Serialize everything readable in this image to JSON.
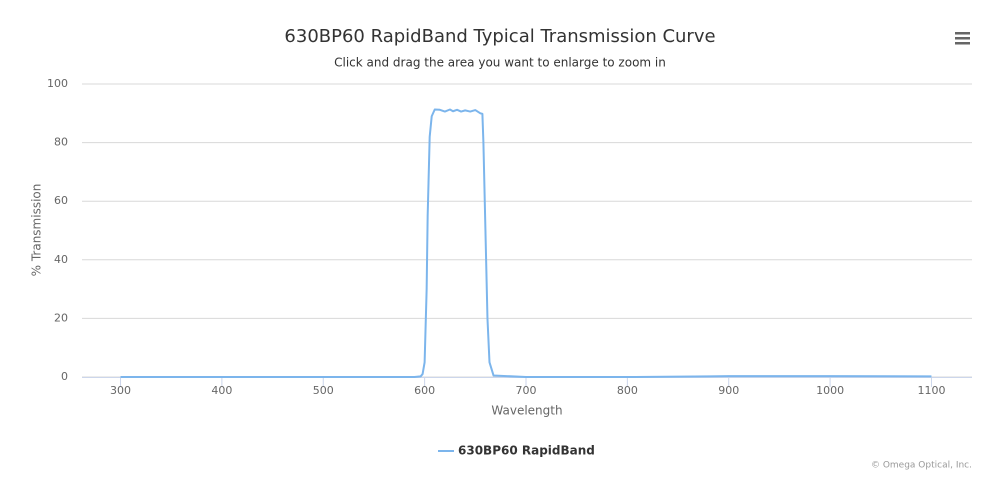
{
  "chart_data": {
    "type": "line",
    "title": "630BP60 RapidBand Typical Transmission Curve",
    "subtitle": "Click and drag the area you want to enlarge to zoom in",
    "x_label": "Wavelength",
    "y_label": "% Transmission",
    "credit": "© Omega Optical, Inc.",
    "x": [
      300,
      400,
      500,
      590,
      596,
      598,
      600,
      602,
      603,
      605,
      607,
      610,
      615,
      620,
      625,
      628,
      632,
      636,
      640,
      645,
      650,
      655,
      657,
      658,
      660,
      662,
      664,
      668,
      700,
      800,
      880,
      900,
      1000,
      1100
    ],
    "series": [
      {
        "name": "630BP60 RapidBand",
        "color": "#7cb5ec",
        "values": [
          0,
          0,
          0,
          0,
          0.2,
          1,
          5,
          30,
          55,
          82,
          89,
          91.3,
          91.2,
          90.6,
          91.3,
          90.7,
          91.2,
          90.6,
          91.0,
          90.6,
          91.1,
          90.0,
          89.8,
          80,
          50,
          20,
          5,
          0.5,
          0,
          0,
          0.2,
          0.3,
          0.3,
          0.2
        ]
      }
    ],
    "xlim": [
      262,
      1140
    ],
    "ylim": [
      0,
      100
    ],
    "xticks": [
      300,
      400,
      500,
      600,
      700,
      800,
      900,
      1000,
      1100
    ],
    "yticks": [
      0,
      20,
      40,
      60,
      80,
      100
    ],
    "grid": true
  }
}
